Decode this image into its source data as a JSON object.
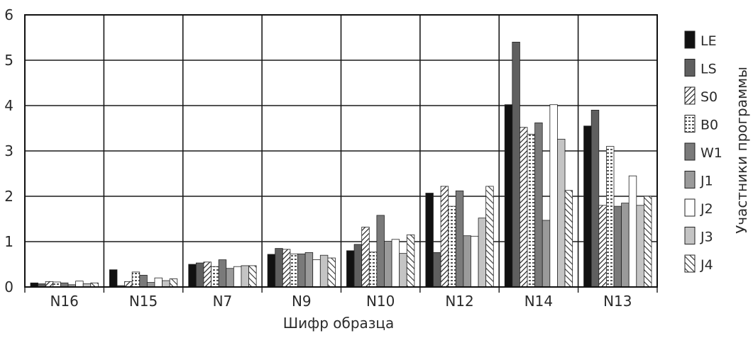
{
  "chart_data": {
    "type": "bar",
    "title": "",
    "xlabel": "Шифр образца",
    "ylabel": "",
    "legend_title": "Участники программы",
    "legend_position": "right",
    "grid": true,
    "ylim": [
      0,
      6
    ],
    "yticks": [
      "0",
      "1",
      "2",
      "3",
      "4",
      "5",
      "6"
    ],
    "categories": [
      "N16",
      "N15",
      "N7",
      "N9",
      "N10",
      "N12",
      "N14",
      "N13"
    ],
    "series": [
      {
        "name": "LE",
        "pattern": "solid-black",
        "values": [
          0.09,
          0.38,
          0.5,
          0.72,
          0.8,
          2.07,
          4.02,
          3.55
        ]
      },
      {
        "name": "LS",
        "pattern": "solid-dark",
        "values": [
          0.07,
          0.03,
          0.53,
          0.85,
          0.94,
          0.76,
          5.4,
          3.9
        ]
      },
      {
        "name": "S0",
        "pattern": "diagonal",
        "values": [
          0.12,
          0.12,
          0.55,
          0.83,
          1.32,
          2.22,
          3.52,
          1.8
        ]
      },
      {
        "name": "B0",
        "pattern": "dots",
        "values": [
          0.11,
          0.33,
          0.45,
          0.73,
          0.77,
          1.78,
          3.37,
          3.1
        ]
      },
      {
        "name": "W1",
        "pattern": "solid-mid",
        "values": [
          0.09,
          0.26,
          0.6,
          0.73,
          1.58,
          2.12,
          3.62,
          1.78
        ]
      },
      {
        "name": "J1",
        "pattern": "solid-light",
        "values": [
          0.05,
          0.1,
          0.41,
          0.76,
          1.01,
          1.13,
          1.47,
          1.85
        ]
      },
      {
        "name": "J2",
        "pattern": "white",
        "values": [
          0.13,
          0.2,
          0.45,
          0.6,
          1.05,
          1.12,
          4.02,
          2.45
        ]
      },
      {
        "name": "J3",
        "pattern": "solid-pale",
        "values": [
          0.07,
          0.14,
          0.47,
          0.7,
          0.74,
          1.52,
          3.26,
          1.8
        ]
      },
      {
        "name": "J4",
        "pattern": "diagonal-wide",
        "values": [
          0.09,
          0.18,
          0.47,
          0.64,
          1.15,
          2.22,
          2.13,
          2.0
        ]
      }
    ]
  }
}
